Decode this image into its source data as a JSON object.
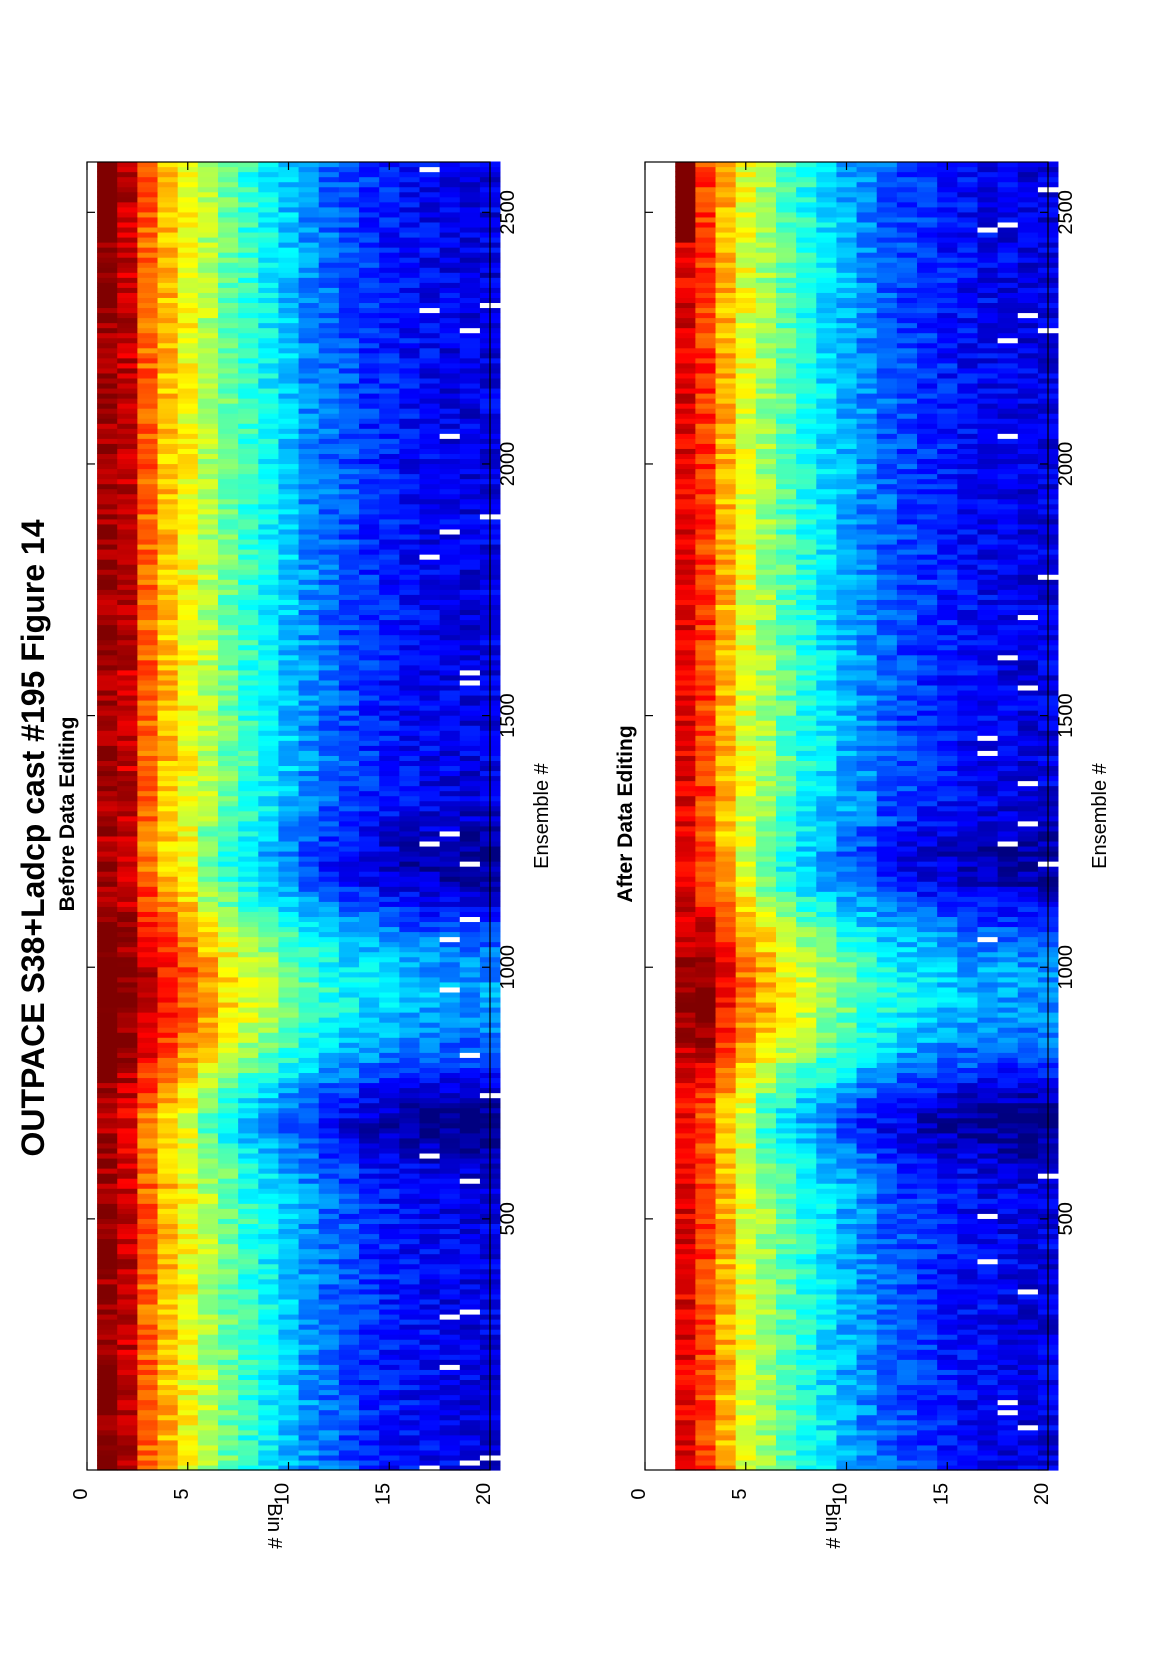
{
  "figure_title": "OUTPACE S38+Ladcp cast #195  Figure 14",
  "colormap": "jet",
  "chart_data": [
    {
      "type": "heatmap",
      "title": "Before Data Editing",
      "xlabel": "Ensemble #",
      "ylabel": "Bin #",
      "xlim": [
        1,
        2600
      ],
      "ylim": [
        0,
        20
      ],
      "xticks": [
        500,
        1000,
        1500,
        2000,
        2500
      ],
      "yticks": [
        0,
        5,
        10,
        15,
        20
      ],
      "bins": [
        1,
        20
      ],
      "profile": [
        0.98,
        0.93,
        0.78,
        0.69,
        0.62,
        0.55,
        0.48,
        0.42,
        0.37,
        0.32,
        0.27,
        0.23,
        0.2,
        0.17,
        0.15,
        0.13,
        0.12,
        0.11,
        0.1,
        0.1
      ],
      "notes": "Bin 1 saturated (dark red) near ensembles 1-30, 120-210 and 2440-2600; bright inverted-V feature centered near ensemble 950."
    },
    {
      "type": "heatmap",
      "title": "After Data Editing",
      "xlabel": "Ensemble #",
      "ylabel": "Bin #",
      "xlim": [
        1,
        2600
      ],
      "ylim": [
        0,
        20
      ],
      "xticks": [
        500,
        1000,
        1500,
        2000,
        2500
      ],
      "yticks": [
        0,
        5,
        10,
        15,
        20
      ],
      "bins": [
        2,
        20
      ],
      "profile": [
        null,
        0.9,
        0.82,
        0.7,
        0.6,
        0.53,
        0.46,
        0.4,
        0.35,
        0.3,
        0.26,
        0.22,
        0.19,
        0.17,
        0.15,
        0.13,
        0.12,
        0.11,
        0.1,
        0.1
      ],
      "notes": "Bin 1 removed (blank). Bin 2 saturated near ensembles 2440-2600; same inverted-V feature near ensemble 950."
    }
  ]
}
